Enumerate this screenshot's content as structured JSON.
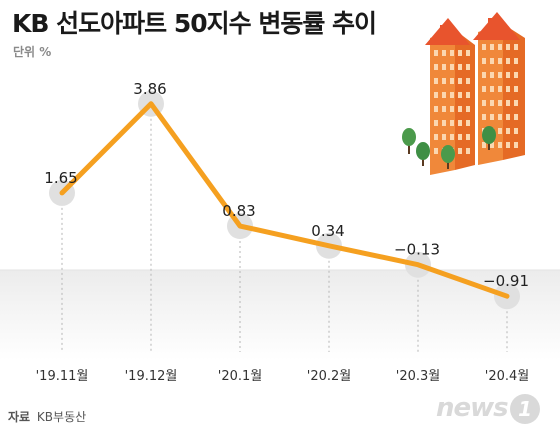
{
  "title": "KB 선도아파트 50지수 변동률 추이",
  "unit_label": "단위 %",
  "source": {
    "label": "자료",
    "value": "KB부동산"
  },
  "logo": {
    "text": "news",
    "mark": "1"
  },
  "colors": {
    "line": "#f5a020",
    "dot": "#e0e0e0",
    "negative_band": "#eeeeee",
    "building": "#f0883a"
  },
  "chart_data": {
    "type": "line",
    "categories": [
      "'19.11월",
      "'19.12월",
      "'20.1월",
      "'20.2월",
      "'20.3월",
      "'20.4월"
    ],
    "values": [
      1.65,
      3.86,
      0.83,
      0.34,
      -0.13,
      -0.91
    ],
    "value_labels": [
      "1.65",
      "3.86",
      "0.83",
      "0.34",
      "−0.13",
      "−0.91"
    ],
    "ylim": [
      -1.5,
      4.4
    ],
    "grid": "vertical dotted"
  }
}
